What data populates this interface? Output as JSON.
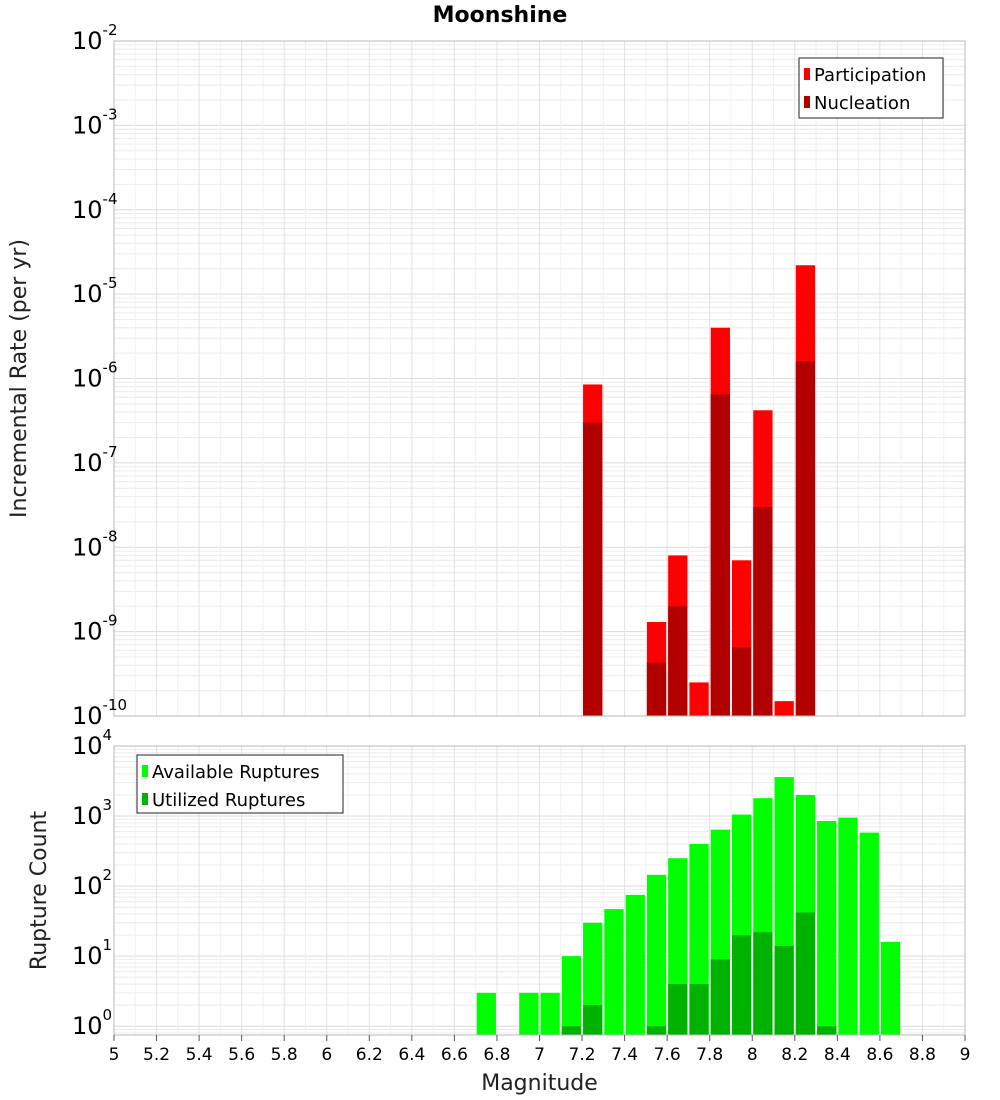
{
  "chart_data": [
    {
      "type": "bar",
      "title": "Moonshine",
      "xlabel": "",
      "ylabel": "Incremental Rate (per yr)",
      "yscale": "log",
      "ylim": [
        1e-10,
        0.01
      ],
      "xlim": [
        5,
        9
      ],
      "bar_width": 0.1,
      "grid": true,
      "legend": "top-right",
      "x": [
        7.25,
        7.55,
        7.65,
        7.75,
        7.85,
        7.95,
        8.05,
        8.15,
        8.25
      ],
      "series": [
        {
          "name": "Participation",
          "color": "#ff0000",
          "values": [
            8.5e-07,
            1.3e-09,
            8e-09,
            2.5e-10,
            4e-06,
            7e-09,
            4.2e-07,
            1.5e-10,
            2.2e-05
          ]
        },
        {
          "name": "Nucleation",
          "color": "#b20000",
          "values": [
            3e-07,
            4.3e-10,
            2e-09,
            null,
            6.5e-07,
            6.5e-10,
            3e-08,
            null,
            1.6e-06
          ]
        }
      ],
      "yticks": [
        {
          "base": "10",
          "exp": "-2"
        },
        {
          "base": "10",
          "exp": "-3"
        },
        {
          "base": "10",
          "exp": "-4"
        },
        {
          "base": "10",
          "exp": "-5"
        },
        {
          "base": "10",
          "exp": "-6"
        },
        {
          "base": "10",
          "exp": "-7"
        },
        {
          "base": "10",
          "exp": "-8"
        },
        {
          "base": "10",
          "exp": "-9"
        },
        {
          "base": "10",
          "exp": "-10"
        }
      ]
    },
    {
      "type": "bar",
      "xlabel": "Magnitude",
      "ylabel": "Rupture Count",
      "yscale": "log",
      "ylim": [
        0.75,
        10000
      ],
      "xlim": [
        5,
        9
      ],
      "bar_width": 0.1,
      "grid": true,
      "legend": "top-left",
      "x": [
        6.75,
        6.85,
        6.95,
        7.05,
        7.15,
        7.25,
        7.35,
        7.45,
        7.55,
        7.65,
        7.75,
        7.85,
        7.95,
        8.05,
        8.15,
        8.25,
        8.35,
        8.45,
        8.55,
        8.65
      ],
      "series": [
        {
          "name": "Available Ruptures",
          "color": "#00ff00",
          "values": [
            3,
            null,
            3,
            3,
            10,
            30,
            47,
            75,
            145,
            250,
            400,
            640,
            1050,
            1800,
            3600,
            2000,
            850,
            950,
            580,
            16
          ]
        },
        {
          "name": "Utilized Ruptures",
          "color": "#00b200",
          "values": [
            null,
            null,
            null,
            null,
            1,
            2,
            null,
            null,
            1,
            4,
            4,
            9,
            20,
            22,
            14,
            42,
            1,
            null,
            null,
            null
          ]
        }
      ],
      "yticks": [
        {
          "base": "10",
          "exp": "4"
        },
        {
          "base": "10",
          "exp": "3"
        },
        {
          "base": "10",
          "exp": "2"
        },
        {
          "base": "10",
          "exp": "1"
        },
        {
          "base": "10",
          "exp": "0"
        }
      ],
      "xticks": [
        "5",
        "5.2",
        "5.4",
        "5.6",
        "5.8",
        "6",
        "6.2",
        "6.4",
        "6.6",
        "6.8",
        "7",
        "7.2",
        "7.4",
        "7.6",
        "7.8",
        "8",
        "8.2",
        "8.4",
        "8.6",
        "8.8",
        "9"
      ]
    }
  ]
}
